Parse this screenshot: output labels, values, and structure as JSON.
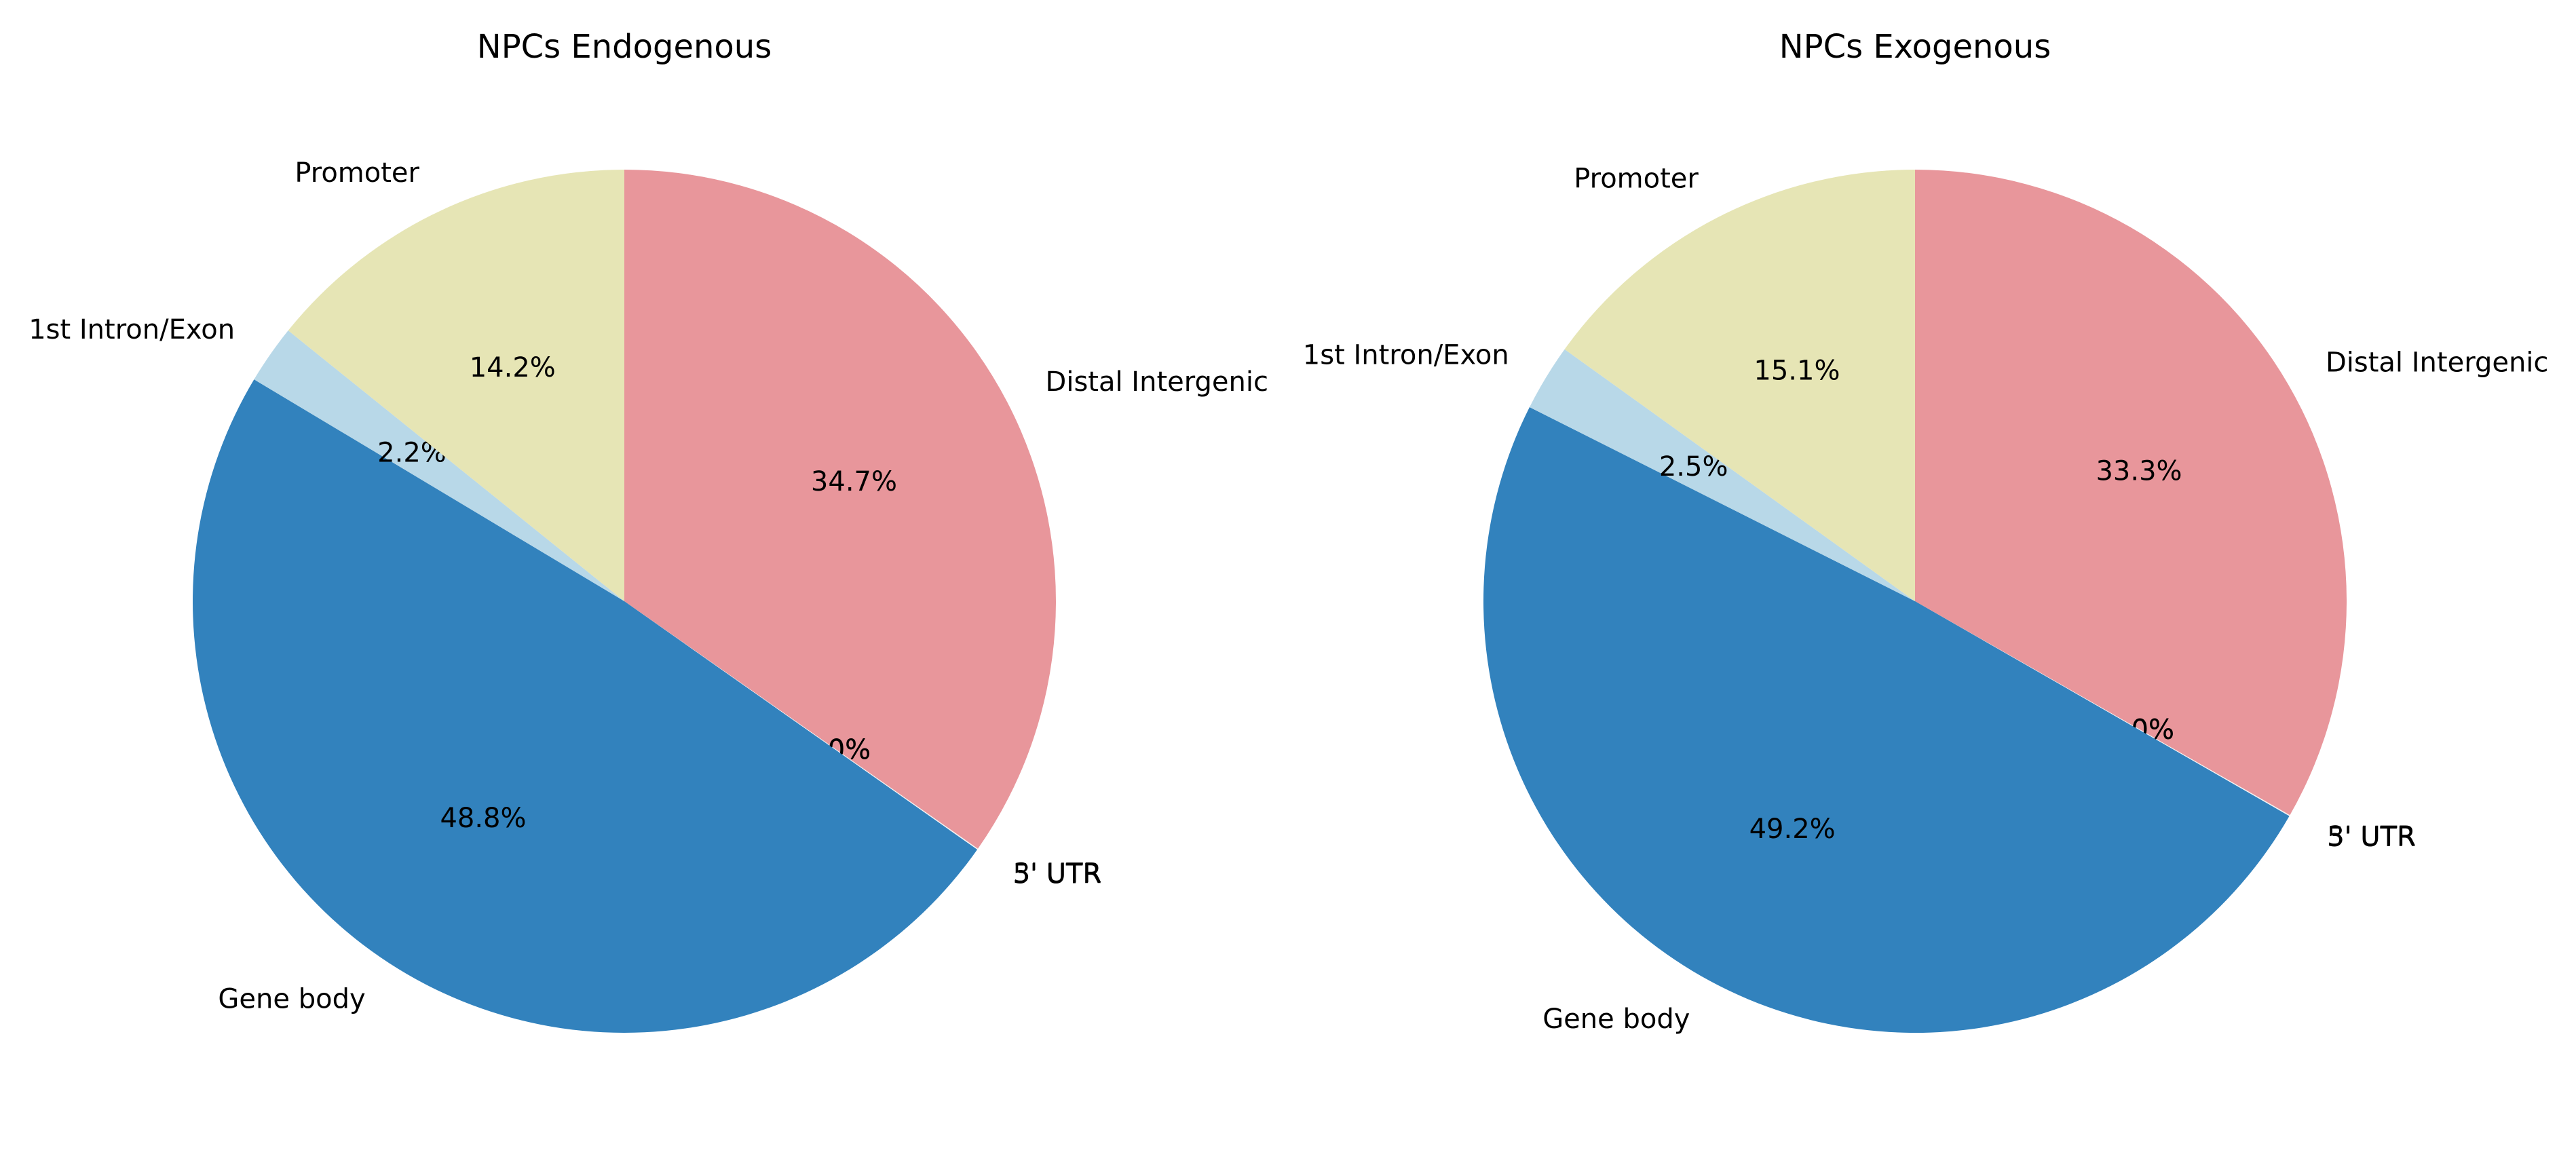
{
  "chart_data": [
    {
      "type": "pie",
      "title": "NPCs Endogenous",
      "start_angle_deg": 90,
      "direction": "clockwise",
      "slices": [
        {
          "label": "Distal Intergenic",
          "value": 34.7,
          "pct_label": "34.7%",
          "color": "#e8969b"
        },
        {
          "label": "3' UTR",
          "value": 0.02,
          "pct_label": "0.0%",
          "color": "#f0f0f0"
        },
        {
          "label": "5' UTR",
          "value": 0.02,
          "pct_label": "0.0%",
          "color": "#f5f5f5"
        },
        {
          "label": "Gene body",
          "value": 48.8,
          "pct_label": "48.8%",
          "color": "#3282bd"
        },
        {
          "label": "1st Intron/Exon",
          "value": 2.2,
          "pct_label": "2.2%",
          "color": "#b8d8e8"
        },
        {
          "label": "Promoter",
          "value": 14.2,
          "pct_label": "14.2%",
          "color": "#e6e5b5"
        }
      ]
    },
    {
      "type": "pie",
      "title": "NPCs Exogenous",
      "start_angle_deg": 90,
      "direction": "clockwise",
      "slices": [
        {
          "label": "Distal Intergenic",
          "value": 33.3,
          "pct_label": "33.3%",
          "color": "#e8969b"
        },
        {
          "label": "3' UTR",
          "value": 0.02,
          "pct_label": "0.0%",
          "color": "#f0f0f0"
        },
        {
          "label": "5' UTR",
          "value": 0.02,
          "pct_label": "0.0%",
          "color": "#f5f5f5"
        },
        {
          "label": "Gene body",
          "value": 49.2,
          "pct_label": "49.2%",
          "color": "#3282bd"
        },
        {
          "label": "1st Intron/Exon",
          "value": 2.5,
          "pct_label": "2.5%",
          "color": "#b8d8e8"
        },
        {
          "label": "Promoter",
          "value": 15.1,
          "pct_label": "15.1%",
          "color": "#e6e5b5"
        }
      ]
    }
  ]
}
